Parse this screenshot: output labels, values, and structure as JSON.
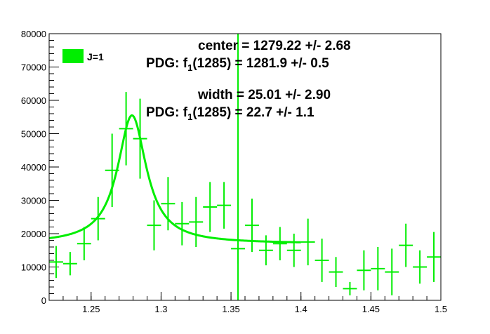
{
  "chart_data": {
    "type": "scatter",
    "title": "",
    "xlabel": "",
    "ylabel": "",
    "xlim": [
      1.22,
      1.5
    ],
    "ylim": [
      0,
      80000
    ],
    "grid": false,
    "x_ticks": [
      "1.25",
      "1.3",
      "1.35",
      "1.4",
      "1.45",
      "1.5"
    ],
    "x_tick_values": [
      1.25,
      1.3,
      1.35,
      1.4,
      1.45,
      1.5
    ],
    "y_ticks": [
      "0",
      "10000",
      "20000",
      "30000",
      "40000",
      "50000",
      "60000",
      "70000",
      "80000"
    ],
    "y_tick_values": [
      0,
      10000,
      20000,
      30000,
      40000,
      50000,
      60000,
      70000,
      80000
    ],
    "legend": {
      "placement": "top-left",
      "entries": [
        "J=1"
      ]
    },
    "series_color": "#00ee00",
    "bin_halfwidth": 0.005,
    "points": [
      {
        "x": 1.225,
        "y": 11500,
        "err": 4800
      },
      {
        "x": 1.235,
        "y": 11000,
        "err": 3500
      },
      {
        "x": 1.245,
        "y": 17000,
        "err": 5000
      },
      {
        "x": 1.255,
        "y": 24500,
        "err": 6500
      },
      {
        "x": 1.265,
        "y": 39000,
        "err": 11000
      },
      {
        "x": 1.275,
        "y": 51500,
        "err": 11000
      },
      {
        "x": 1.285,
        "y": 48500,
        "err": 12000
      },
      {
        "x": 1.295,
        "y": 22500,
        "err": 7500
      },
      {
        "x": 1.305,
        "y": 29000,
        "err": 8000
      },
      {
        "x": 1.315,
        "y": 23000,
        "err": 6500
      },
      {
        "x": 1.325,
        "y": 23500,
        "err": 7500
      },
      {
        "x": 1.335,
        "y": 28000,
        "err": 7500
      },
      {
        "x": 1.345,
        "y": 28500,
        "err": 7000
      },
      {
        "x": 1.355,
        "y": 15500,
        "err": 4500
      },
      {
        "x": 1.365,
        "y": 22500,
        "err": 8000
      },
      {
        "x": 1.375,
        "y": 15000,
        "err": 4500
      },
      {
        "x": 1.385,
        "y": 17000,
        "err": 5000
      },
      {
        "x": 1.395,
        "y": 15000,
        "err": 5000
      },
      {
        "x": 1.405,
        "y": 17500,
        "err": 7000
      },
      {
        "x": 1.415,
        "y": 12000,
        "err": 6500
      },
      {
        "x": 1.425,
        "y": 8500,
        "err": 4500
      },
      {
        "x": 1.435,
        "y": 3500,
        "err": 2000
      },
      {
        "x": 1.445,
        "y": 9000,
        "err": 6000
      },
      {
        "x": 1.455,
        "y": 9500,
        "err": 6500
      },
      {
        "x": 1.465,
        "y": 8500,
        "err": 7000
      },
      {
        "x": 1.475,
        "y": 16500,
        "err": 6500
      },
      {
        "x": 1.485,
        "y": 10000,
        "err": 5000
      },
      {
        "x": 1.495,
        "y": 13000,
        "err": 7500
      }
    ],
    "fit": {
      "type": "breit-wigner",
      "center": 1.27922,
      "width": 0.02501,
      "peak": 55500,
      "background": 17000,
      "x_range": [
        1.22,
        1.4
      ]
    },
    "vertical_line_x": 1.355,
    "annotations": {
      "center": "center = 1279.22 +/- 2.68",
      "pdg_center_prefix": "PDG: f",
      "pdg_center_sub": "1",
      "pdg_center_suffix": "(1285) = 1281.9   +/-  0.5",
      "width": "width  =  25.01 +/- 2.90",
      "pdg_width_prefix": "PDG: f",
      "pdg_width_sub": "1",
      "pdg_width_suffix": "(1285) =  22.7   +/-  1.1"
    }
  }
}
